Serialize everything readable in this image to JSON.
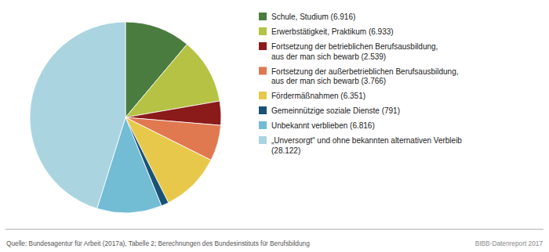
{
  "chart_data": {
    "type": "pie",
    "categories": [
      "Schule, Studium (6.916)",
      "Erwerbstätigkeit, Praktikum (6.933)",
      "Fortsetzung der betrieblichen Berufsausbildung,\naus der man sich bewarb (2.539)",
      "Fortsetzung der außerbetrieblichen Berufsausbildung,\naus der man sich bewarb (3.766)",
      "Fördermäßnahmen (6.351)",
      "Gemeinnützige soziale Dienste (791)",
      "Unbekannt verblieben (6.816)",
      "„Unversorgt“ und ohne bekannten alternativen Verbleib\n(28.122)"
    ],
    "values": [
      6916,
      6933,
      2539,
      3766,
      6351,
      791,
      6816,
      28122
    ],
    "colors": [
      "#4a7c3f",
      "#b5c244",
      "#8b1a1a",
      "#e07850",
      "#e8c84a",
      "#1a5276",
      "#72bcd4",
      "#aad4e0"
    ],
    "legend": "right",
    "annotations": [
      "Quelle: Bundesagentur für Arbeit (2017a), Tabelle 2; Berechnungen des Bundesinstituts für Berufsbildung",
      "BIBB-Datenreport 2017"
    ]
  }
}
